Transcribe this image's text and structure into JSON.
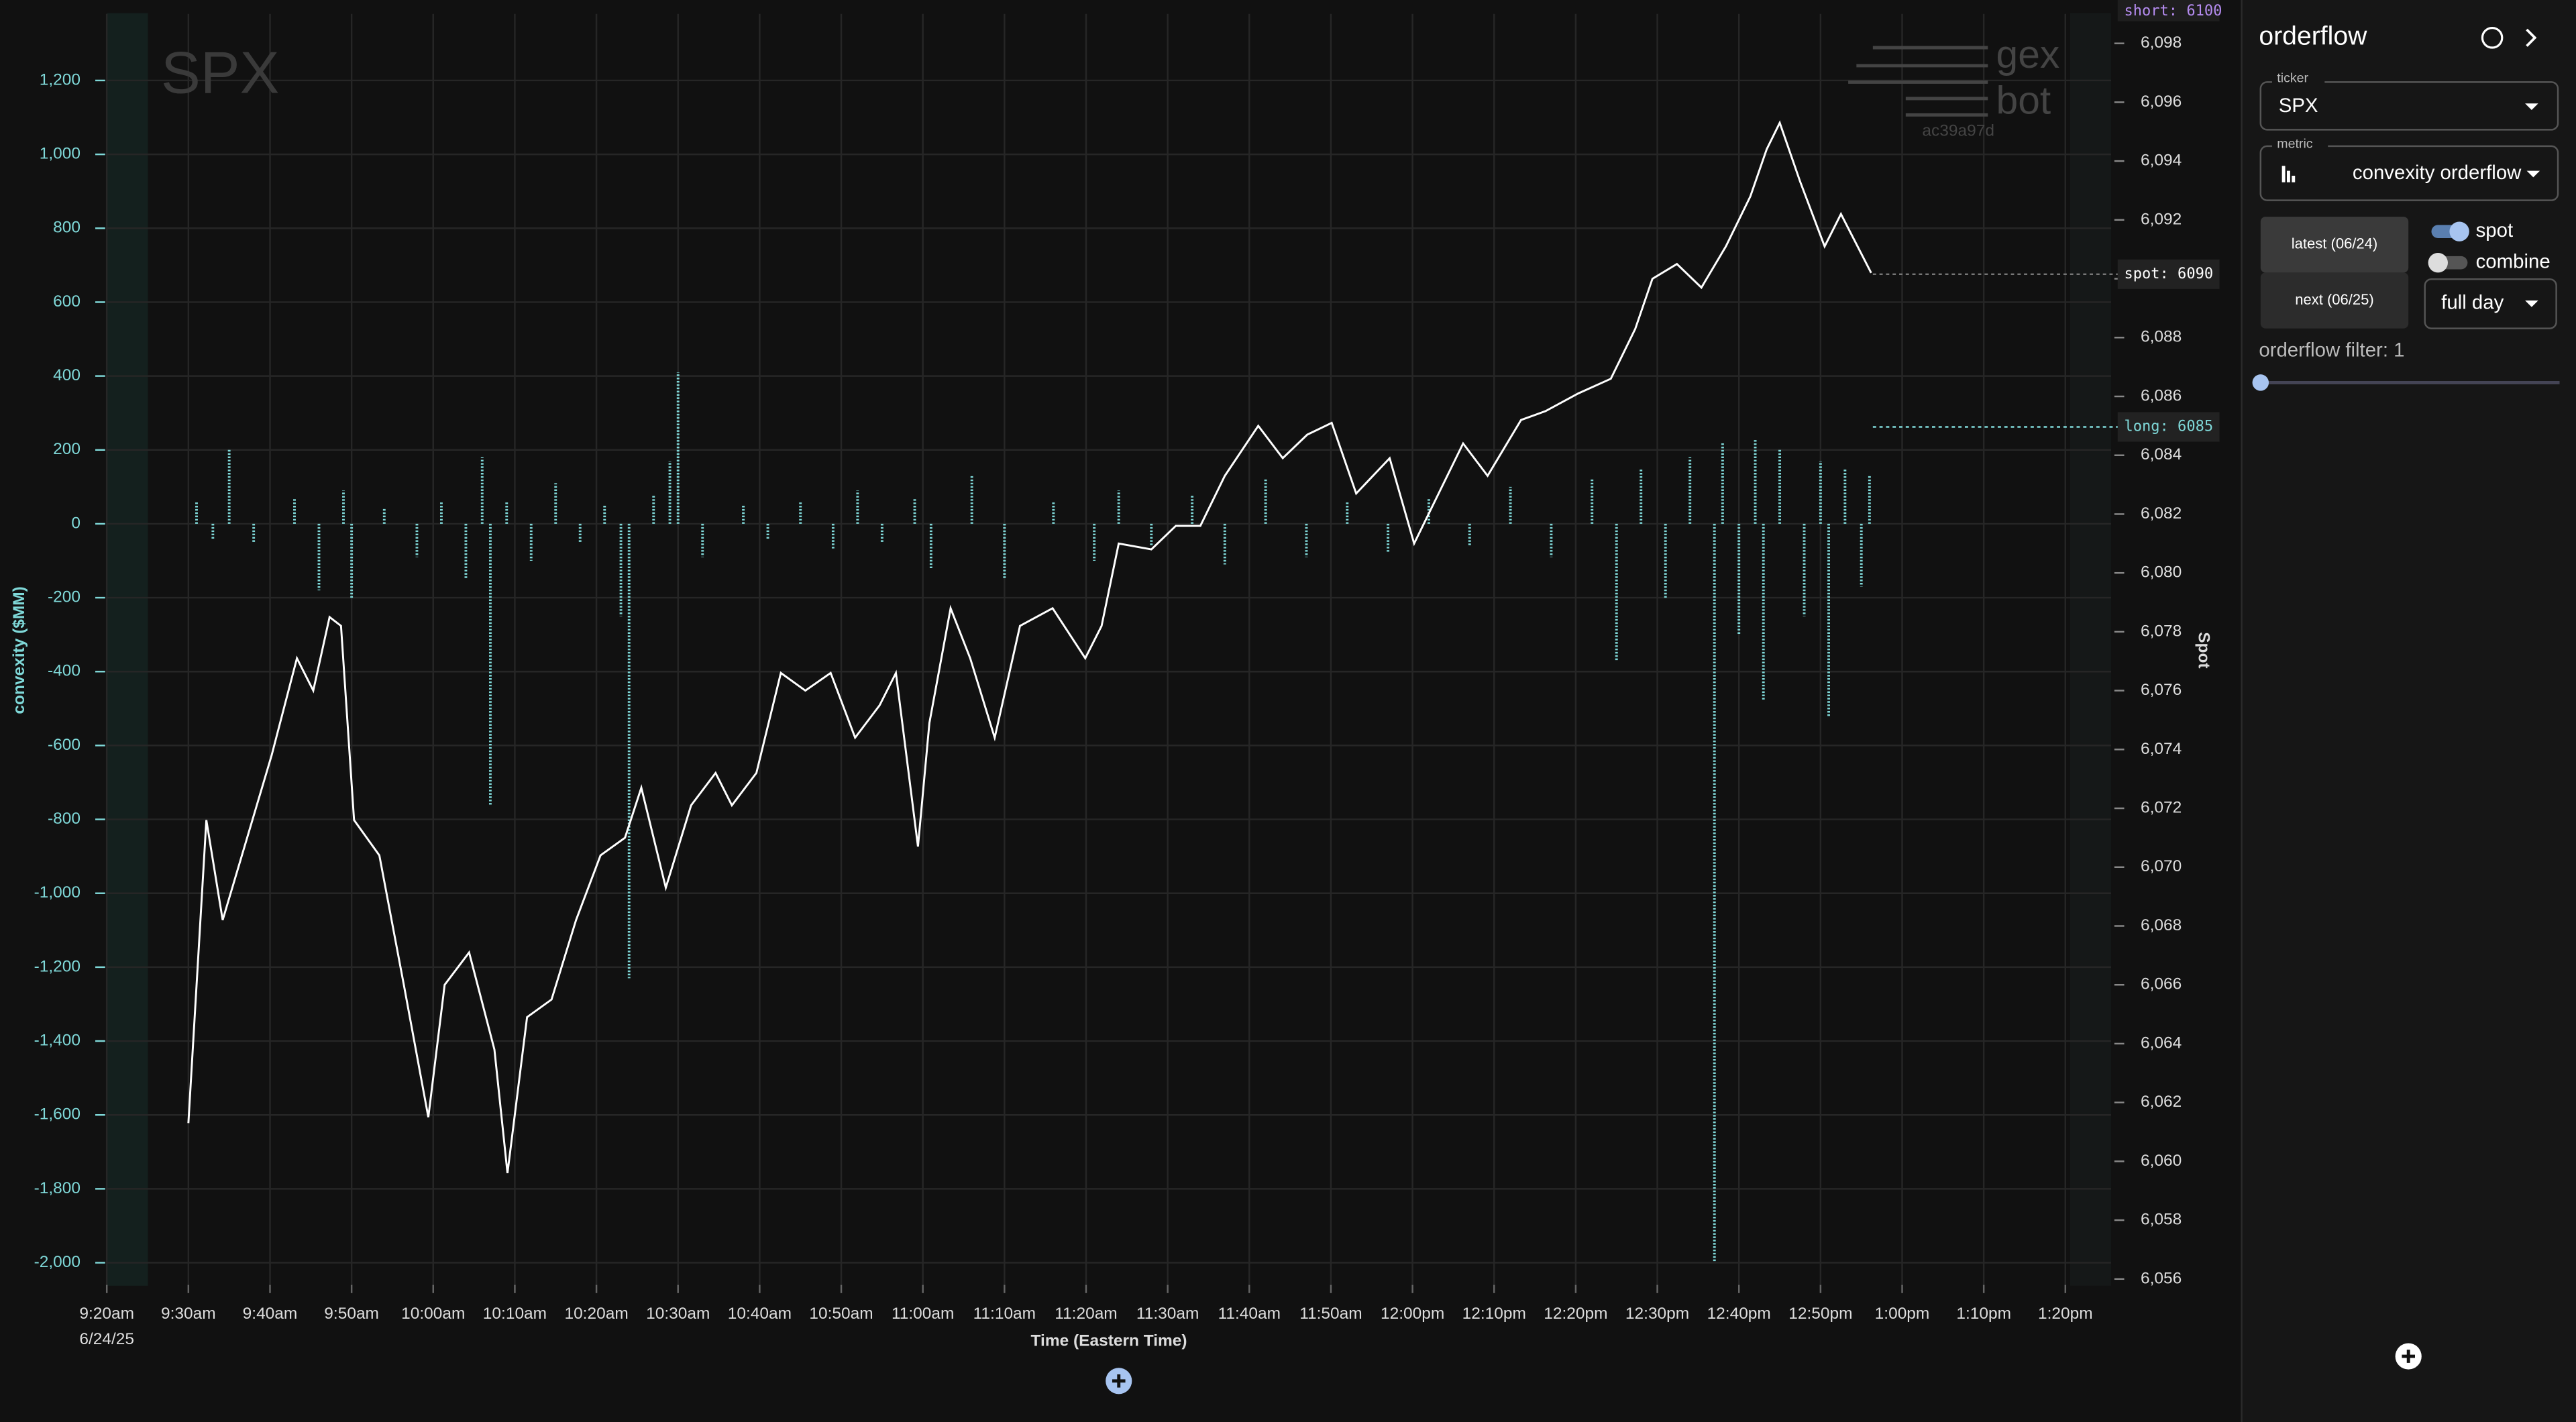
{
  "chart_data": {
    "type": "bar",
    "watermark": "SPX",
    "logo": [
      "gex",
      "bot"
    ],
    "hash": "ac39a97d",
    "y_label": "convexity ($MM)",
    "y2_label": "Spot",
    "x_label": "Time (Eastern Time)",
    "x_date": "6/24/25",
    "tags": [
      "short: 6100",
      "spot: 6090",
      "long: 6085"
    ],
    "grid": true,
    "xlim": [
      560,
      805.6
    ],
    "xticks": [
      {
        "value": 560,
        "label": "9:20am"
      },
      {
        "value": 570,
        "label": "9:30am"
      },
      {
        "value": 580,
        "label": "9:40am"
      },
      {
        "value": 590,
        "label": "9:50am"
      },
      {
        "value": 600,
        "label": "10:00am"
      },
      {
        "value": 610,
        "label": "10:10am"
      },
      {
        "value": 620,
        "label": "10:20am"
      },
      {
        "value": 630,
        "label": "10:30am"
      },
      {
        "value": 640,
        "label": "10:40am"
      },
      {
        "value": 650,
        "label": "10:50am"
      },
      {
        "value": 660,
        "label": "11:00am"
      },
      {
        "value": 670,
        "label": "11:10am"
      },
      {
        "value": 680,
        "label": "11:20am"
      },
      {
        "value": 690,
        "label": "11:30am"
      },
      {
        "value": 700,
        "label": "11:40am"
      },
      {
        "value": 710,
        "label": "11:50am"
      },
      {
        "value": 720,
        "label": "12:00pm"
      },
      {
        "value": 730,
        "label": "12:10pm"
      },
      {
        "value": 740,
        "label": "12:20pm"
      },
      {
        "value": 750,
        "label": "12:30pm"
      },
      {
        "value": 760,
        "label": "12:40pm"
      },
      {
        "value": 770,
        "label": "12:50pm"
      },
      {
        "value": 780,
        "label": "1:00pm"
      },
      {
        "value": 790,
        "label": "1:10pm"
      },
      {
        "value": 800,
        "label": "1:20pm"
      }
    ],
    "ylim": [
      -2060,
      1380
    ],
    "yticks": [
      {
        "value": 1200,
        "label": "1,200"
      },
      {
        "value": 1000,
        "label": "1,000"
      },
      800,
      600,
      400,
      200,
      0,
      -200,
      -400,
      -600,
      -800,
      {
        "value": -1000,
        "label": "-1,000"
      },
      {
        "value": -1200,
        "label": "-1,200"
      },
      {
        "value": -1400,
        "label": "-1,400"
      },
      {
        "value": -1600,
        "label": "-1,600"
      },
      {
        "value": -1800,
        "label": "-1,800"
      },
      {
        "value": -2000,
        "label": "-2,000"
      }
    ],
    "y2lim": [
      6055.8,
      6099
    ],
    "y2ticks": [
      {
        "value": 6098,
        "label": "6,098"
      },
      {
        "value": 6096,
        "label": "6,096"
      },
      {
        "value": 6094,
        "label": "6,094"
      },
      {
        "value": 6092,
        "label": "6,092"
      },
      {
        "value": 6090,
        "label": "6,090"
      },
      {
        "value": 6088,
        "label": "6,088"
      },
      {
        "value": 6086,
        "label": "6,086"
      },
      {
        "value": 6084,
        "label": "6,084"
      },
      {
        "value": 6082,
        "label": "6,082"
      },
      {
        "value": 6080,
        "label": "6,080"
      },
      {
        "value": 6078,
        "label": "6,078"
      },
      {
        "value": 6076,
        "label": "6,076"
      },
      {
        "value": 6074,
        "label": "6,074"
      },
      {
        "value": 6072,
        "label": "6,072"
      },
      {
        "value": 6070,
        "label": "6,070"
      },
      {
        "value": 6068,
        "label": "6,068"
      },
      {
        "value": 6066,
        "label": "6,066"
      },
      {
        "value": 6064,
        "label": "6,064"
      },
      {
        "value": 6062,
        "label": "6,062"
      },
      {
        "value": 6060,
        "label": "6,060"
      },
      {
        "value": 6058,
        "label": "6,058"
      },
      {
        "value": 6056,
        "label": "6,056"
      }
    ],
    "series": [
      {
        "type": "bar",
        "color": "#7fd8d8",
        "x": [
          571,
          573,
          575,
          578,
          583,
          586,
          589,
          590,
          594,
          598,
          601,
          604,
          606,
          607,
          609,
          612,
          615,
          618,
          621,
          623,
          624,
          627,
          629,
          630,
          633,
          638,
          641,
          645,
          649,
          652,
          655,
          659,
          661,
          666,
          670,
          676,
          681,
          684,
          688,
          693,
          697,
          702,
          707,
          712,
          717,
          722,
          727,
          732,
          737,
          742,
          745,
          748,
          751,
          754,
          757,
          758,
          760,
          762,
          763,
          765,
          768,
          770,
          771,
          773,
          775,
          776
        ],
        "values": [
          60,
          -40,
          200,
          -50,
          70,
          -180,
          90,
          -200,
          40,
          -90,
          60,
          -150,
          180,
          -760,
          60,
          -100,
          110,
          -50,
          50,
          -250,
          -1230,
          80,
          170,
          410,
          -90,
          50,
          -40,
          60,
          -70,
          90,
          -50,
          70,
          -120,
          130,
          -150,
          60,
          -100,
          90,
          -60,
          80,
          -110,
          120,
          -90,
          60,
          -80,
          70,
          -60,
          100,
          -90,
          120,
          -370,
          150,
          -200,
          180,
          -2000,
          220,
          -300,
          230,
          -480,
          200,
          -250,
          170,
          -520,
          150,
          -170,
          130
        ]
      },
      {
        "type": "line",
        "axis": "y2",
        "color": "#ffffff",
        "x": [
          570,
          572.2,
          574.2,
          577.2,
          580.2,
          583.3,
          585.3,
          587.3,
          588.7,
          590.3,
          593.4,
          596.4,
          599.4,
          601.4,
          604.4,
          607.5,
          609.1,
          611.5,
          614.5,
          617.5,
          620.5,
          623.5,
          625.5,
          628.5,
          631.6,
          634.6,
          636.6,
          639.6,
          642.6,
          645.6,
          648.7,
          651.7,
          654.7,
          656.7,
          659.4,
          660.8,
          663.4,
          665.8,
          668.8,
          671.9,
          675.9,
          679.9,
          681.9,
          684,
          688,
          691,
          694,
          697,
          701.1,
          704.1,
          707.1,
          710.1,
          713.1,
          717.2,
          720.2,
          723.2,
          726.2,
          729.2,
          733.3,
          736.3,
          740.3,
          744.3,
          747.3,
          749.4,
          752.4,
          755.4,
          758.4,
          761.4,
          763.4,
          765,
          767.5,
          770.5,
          772.5,
          776.2
        ],
        "values": [
          6061.3,
          6071.6,
          6068.2,
          6071,
          6073.8,
          6077.1,
          6076,
          6078.5,
          6078.2,
          6071.6,
          6070.4,
          6066,
          6061.5,
          6066,
          6067.1,
          6063.8,
          6059.6,
          6064.9,
          6065.5,
          6068.2,
          6070.4,
          6071,
          6072.7,
          6069.3,
          6072.1,
          6073.2,
          6072.1,
          6073.2,
          6076.6,
          6076,
          6076.6,
          6074.4,
          6075.5,
          6076.6,
          6070.7,
          6074.9,
          6078.8,
          6077.1,
          6074.4,
          6078.2,
          6078.8,
          6077.1,
          6078.2,
          6081,
          6080.8,
          6081.6,
          6081.6,
          6083.3,
          6085,
          6083.9,
          6084.7,
          6085.1,
          6082.7,
          6083.9,
          6081,
          6082.7,
          6084.4,
          6083.3,
          6085.2,
          6085.5,
          6086.1,
          6086.6,
          6088.3,
          6090,
          6090.5,
          6089.7,
          6091.1,
          6092.8,
          6094.4,
          6095.3,
          6093.3,
          6091.1,
          6092.2,
          6090.2
        ]
      }
    ]
  },
  "sidebar": {
    "title": "orderflow",
    "ticker_label": "ticker",
    "ticker": "SPX",
    "metric_label": "metric",
    "metric": "convexity orderflow",
    "latest": "latest (06/24)",
    "next": "next (06/25)",
    "spot_toggle": "spot",
    "combine_toggle": "combine",
    "range": "full day",
    "filter": "orderflow filter: 1"
  }
}
